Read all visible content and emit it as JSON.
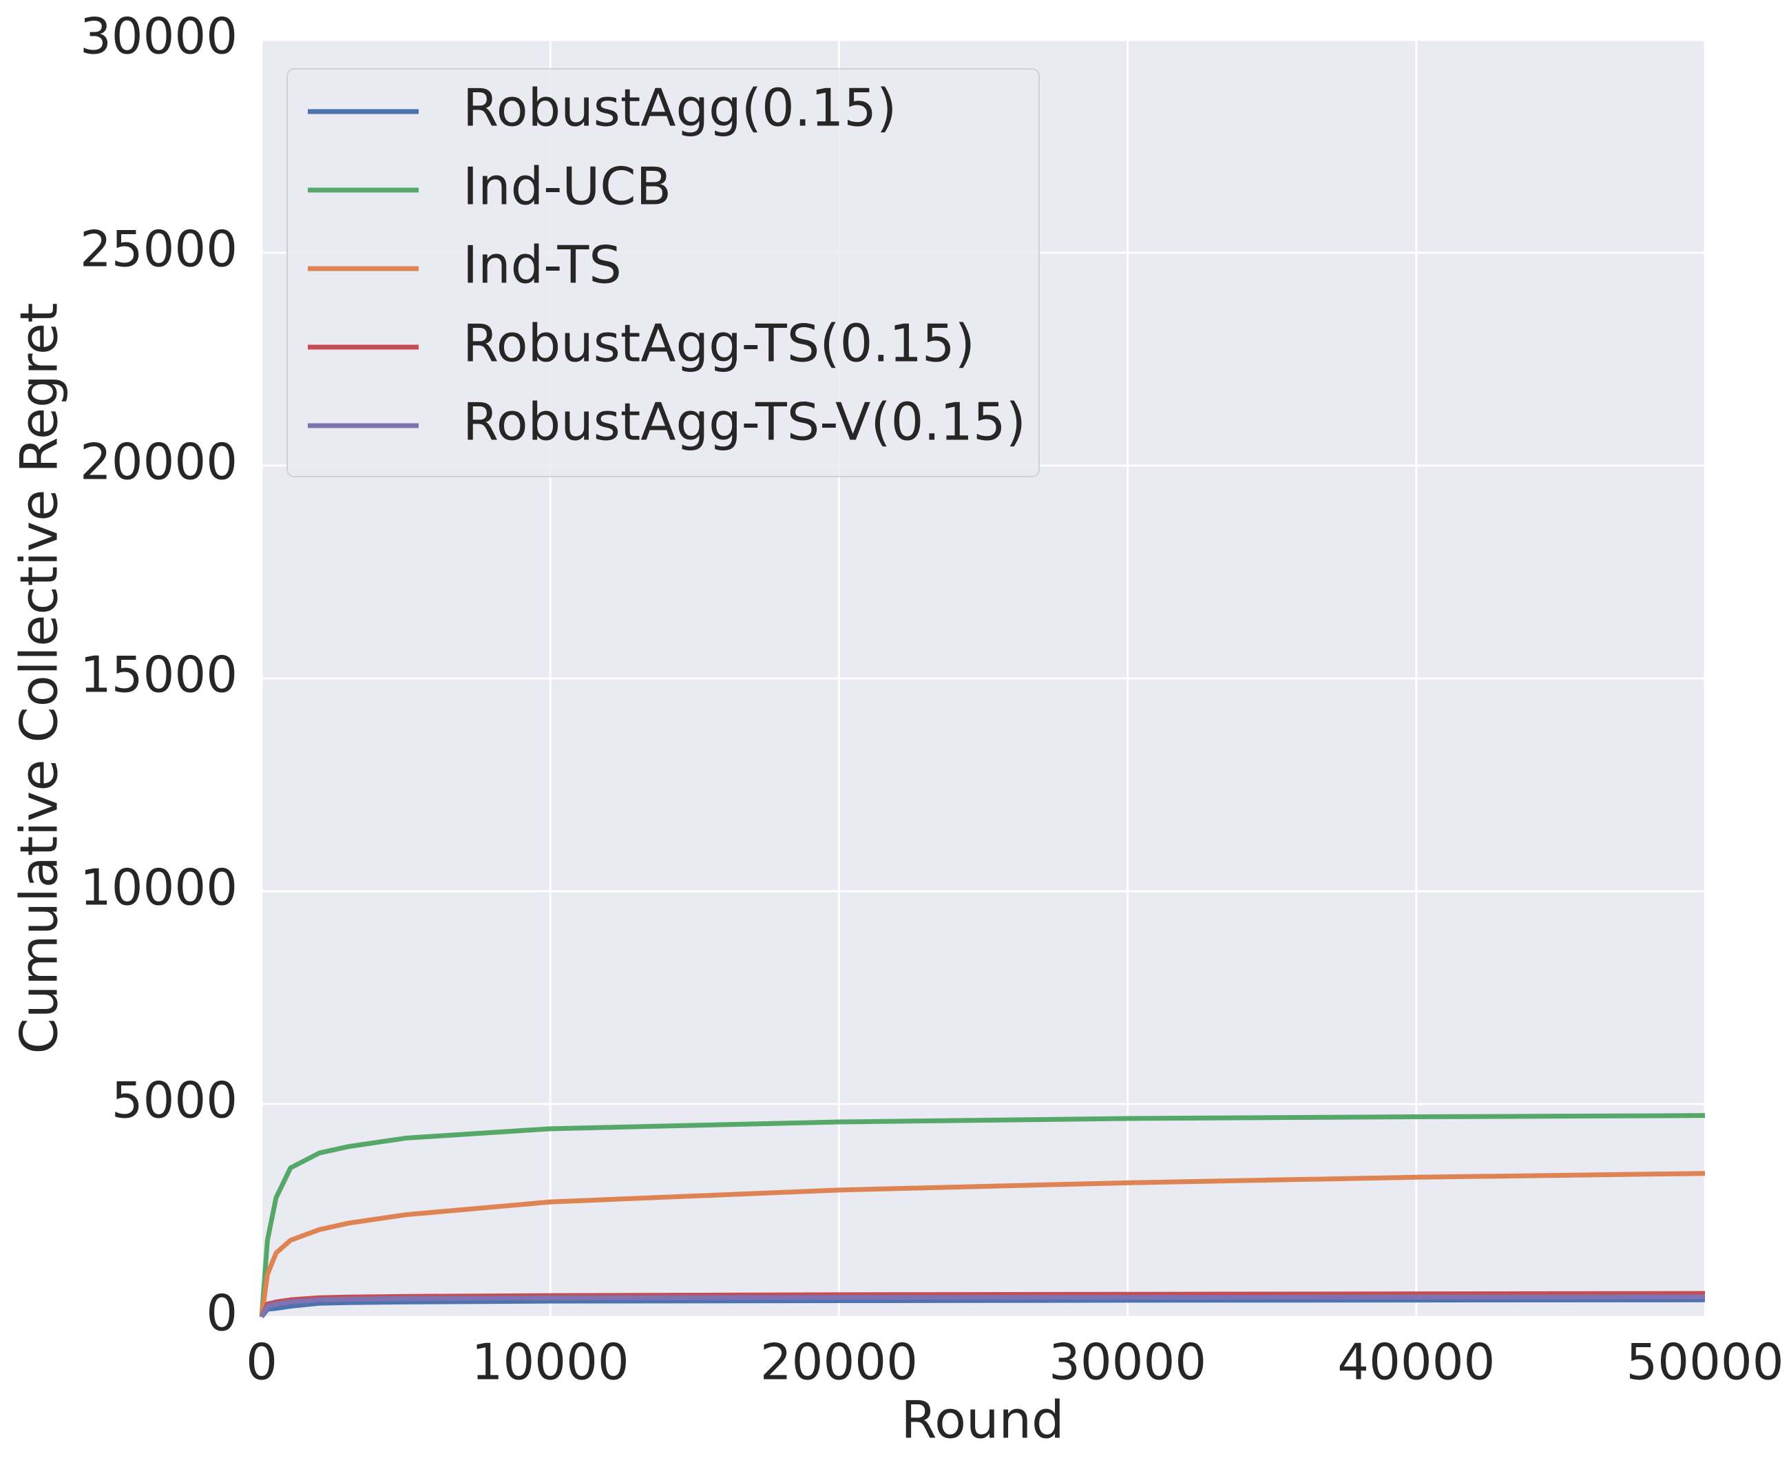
{
  "chart_data": {
    "type": "line",
    "x_label": "Round",
    "y_label": "Cumulative Collective Regret",
    "x": [
      0,
      200,
      500,
      1000,
      2000,
      3000,
      5000,
      10000,
      20000,
      30000,
      40000,
      50000
    ],
    "series": [
      {
        "name": "RobustAgg(0.15)",
        "color": "#4c72b0",
        "values": [
          0,
          180,
          200,
          250,
          320,
          335,
          350,
          370,
          380,
          390,
          395,
          400
        ]
      },
      {
        "name": "Ind-UCB",
        "color": "#55a868",
        "values": [
          0,
          1800,
          2800,
          3500,
          3850,
          4000,
          4200,
          4420,
          4580,
          4660,
          4700,
          4730
        ]
      },
      {
        "name": "Ind-TS",
        "color": "#dd8452",
        "values": [
          0,
          1000,
          1500,
          1800,
          2050,
          2200,
          2400,
          2700,
          2980,
          3150,
          3280,
          3370
        ]
      },
      {
        "name": "RobustAgg-TS(0.15)",
        "color": "#c44e52",
        "values": [
          0,
          300,
          350,
          400,
          450,
          465,
          480,
          500,
          520,
          530,
          540,
          550
        ]
      },
      {
        "name": "RobustAgg-TS-V(0.15)",
        "color": "#8172b2",
        "values": [
          0,
          250,
          300,
          350,
          400,
          415,
          430,
          445,
          455,
          460,
          465,
          470
        ]
      }
    ],
    "xlim": [
      0,
      50000
    ],
    "xticks": [
      0,
      10000,
      20000,
      30000,
      40000,
      50000
    ],
    "ylim": [
      0,
      30000
    ],
    "yticks": [
      0,
      5000,
      10000,
      15000,
      20000,
      25000,
      30000
    ],
    "grid": true,
    "legend": "upper left"
  }
}
